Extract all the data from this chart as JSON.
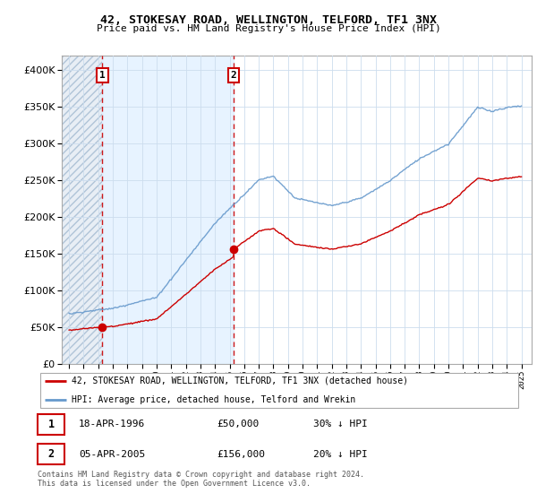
{
  "title": "42, STOKESAY ROAD, WELLINGTON, TELFORD, TF1 3NX",
  "subtitle": "Price paid vs. HM Land Registry's House Price Index (HPI)",
  "sale1_date": "18-APR-1996",
  "sale1_price": 50000,
  "sale1_year": 1996.29,
  "sale2_date": "05-APR-2005",
  "sale2_price": 156000,
  "sale2_year": 2005.27,
  "sale1_hpi_diff": "30% ↓ HPI",
  "sale2_hpi_diff": "20% ↓ HPI",
  "legend_line1": "42, STOKESAY ROAD, WELLINGTON, TELFORD, TF1 3NX (detached house)",
  "legend_line2": "HPI: Average price, detached house, Telford and Wrekin",
  "footer": "Contains HM Land Registry data © Crown copyright and database right 2024.\nThis data is licensed under the Open Government Licence v3.0.",
  "red_color": "#cc0000",
  "blue_color": "#6699cc",
  "blue_fill": "#ddeeff",
  "hatch_fill": "#e0e8f0",
  "grid_color": "#ccddee",
  "ylim_max": 420000,
  "yticks": [
    0,
    50000,
    100000,
    150000,
    200000,
    250000,
    300000,
    350000,
    400000
  ],
  "xstart": 1994,
  "xend": 2025
}
